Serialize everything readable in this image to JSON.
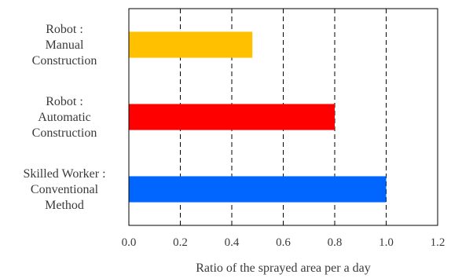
{
  "chart_data": {
    "type": "bar",
    "orientation": "horizontal",
    "categories": [
      [
        "Robot :",
        "Manual",
        "Construction"
      ],
      [
        "Robot :",
        "Automatic",
        "Construction"
      ],
      [
        "Skilled Worker :",
        "Conventional",
        "Method"
      ]
    ],
    "values": [
      0.48,
      0.8,
      1.0
    ],
    "bar_colors": [
      "#ffc000",
      "#ff0000",
      "#0066ff"
    ],
    "title": "",
    "xlabel": "Ratio of the sprayed area per a day",
    "ylabel": "",
    "xlim": [
      0,
      1.2
    ],
    "xticks": [
      0,
      0.2,
      0.4,
      0.6,
      0.8,
      1.0,
      1.2
    ],
    "xtick_labels": [
      "0.0",
      "0.2",
      "0.4",
      "0.6",
      "0.8",
      "1.0",
      "1.2"
    ],
    "grid": "vertical-dashed",
    "legend": "none"
  }
}
